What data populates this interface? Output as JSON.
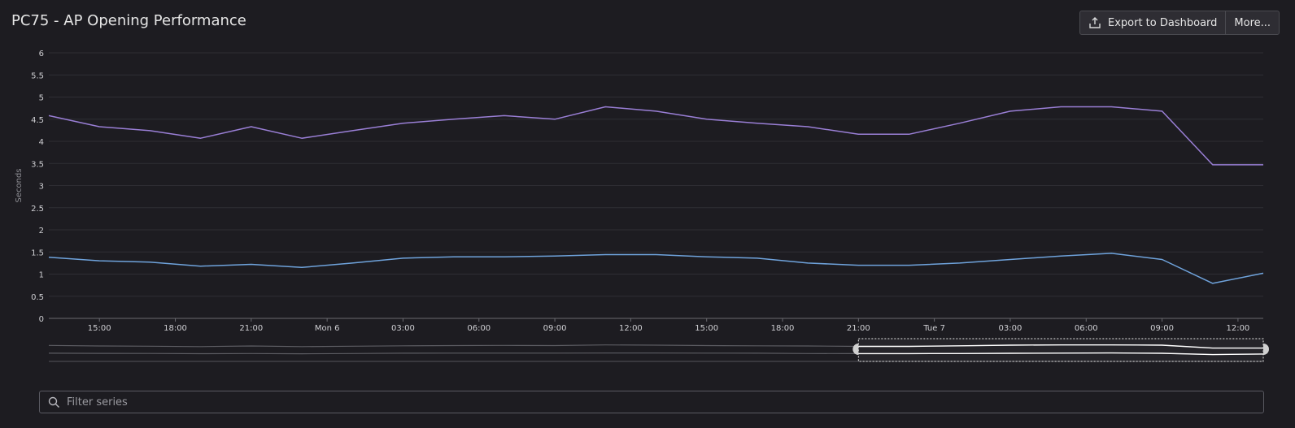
{
  "header": {
    "title": "PC75 - AP Opening Performance",
    "export_label": "Export to Dashboard",
    "more_label": "More..."
  },
  "filter": {
    "placeholder": "Filter series"
  },
  "colors": {
    "background": "#1d1c21",
    "grid": "#2f2e34",
    "axis_text": "#cfcfd3",
    "series_purple": "#9a7fd6",
    "series_blue": "#6fa3dc"
  },
  "chart_data": {
    "type": "line",
    "title": "",
    "ylabel": "Seconds",
    "xlabel": "",
    "ylim": [
      0,
      6
    ],
    "yticks": [
      0,
      0.5,
      1,
      1.5,
      2,
      2.5,
      3,
      3.5,
      4,
      4.5,
      5,
      5.5,
      6
    ],
    "xlim": [
      "Sun 5 13:00",
      "Tue 7 13:00"
    ],
    "xtick_labels": [
      "15:00",
      "18:00",
      "21:00",
      "Mon 6",
      "03:00",
      "06:00",
      "09:00",
      "12:00",
      "15:00",
      "18:00",
      "21:00",
      "Tue 7",
      "03:00",
      "06:00",
      "09:00",
      "12:00"
    ],
    "xtick_hours_after_start": [
      2,
      5,
      8,
      11,
      14,
      17,
      20,
      23,
      26,
      29,
      32,
      35,
      38,
      41,
      44,
      47
    ],
    "x_hours_after_start": [
      0,
      2,
      4,
      6,
      8,
      10,
      12,
      14,
      16,
      18,
      20,
      22,
      24,
      26,
      28,
      30,
      32,
      34,
      36,
      38,
      40,
      42,
      44,
      46,
      48
    ],
    "series": [
      {
        "color": "#9a7fd6",
        "values": [
          4.58,
          4.33,
          4.24,
          4.07,
          4.33,
          4.07,
          4.24,
          4.41,
          4.5,
          4.58,
          4.5,
          4.78,
          4.68,
          4.5,
          4.41,
          4.33,
          4.16,
          4.16,
          4.41,
          4.68,
          4.78,
          4.78,
          4.68,
          3.47,
          3.47
        ]
      },
      {
        "color": "#6fa3dc",
        "values": [
          1.38,
          1.3,
          1.27,
          1.18,
          1.22,
          1.15,
          1.25,
          1.36,
          1.39,
          1.39,
          1.41,
          1.44,
          1.44,
          1.39,
          1.36,
          1.25,
          1.2,
          1.2,
          1.25,
          1.33,
          1.41,
          1.47,
          1.33,
          0.79,
          1.02
        ]
      }
    ],
    "grid": true,
    "legend": "none"
  }
}
